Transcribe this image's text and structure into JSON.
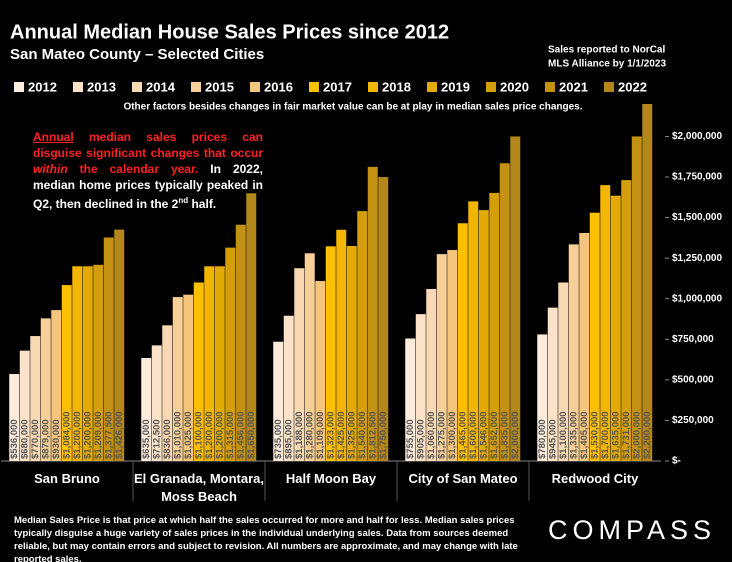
{
  "chart_data": {
    "type": "bar",
    "title": "Annual Median House Sales Prices since 2012",
    "subtitle": "San Mateo County – Selected Cities",
    "source": [
      "Sales reported to NorCal",
      "MLS Alliance by 1/1/2023"
    ],
    "note": "Other factors besides changes in fair market value can be at play in median sales price changes.",
    "annotation": {
      "red": [
        "Annual",
        " median sales prices can disguise significant changes that occur ",
        "within",
        " the calendar year."
      ],
      "white": [
        " In 2022, median home prices typically peaked in Q2, then declined in the 2",
        "nd",
        " half."
      ]
    },
    "footer": "Median Sales Price is that price at which half the sales occurred for more and half for less. Median sales prices typically disguise a huge variety of sales prices in the individual underlying sales. Data from sources deemed reliable, but may contain errors and subject to revision.  All numbers are approximate, and may change with late reported sales.",
    "logo": "COMPASS",
    "categories": [
      "San Bruno",
      "El Granada, Montara, Moss Beach",
      "Half Moon Bay",
      "City of San Mateo",
      "Redwood City"
    ],
    "series": [
      {
        "name": "2012",
        "color": "#fdebdc",
        "values": [
          536000,
          635000,
          735000,
          755000,
          780000
        ],
        "value_labels": [
          "$536,000",
          "$635,000",
          "$735,000",
          "$755,000",
          "$780,000"
        ]
      },
      {
        "name": "2013",
        "color": "#fbe2c8",
        "values": [
          680000,
          712500,
          895000,
          905000,
          945000
        ],
        "value_labels": [
          "$680,000",
          "$712,500",
          "$895,000",
          "$905,000",
          "$945,000"
        ]
      },
      {
        "name": "2014",
        "color": "#f9d9b2",
        "values": [
          770000,
          836000,
          1188000,
          1060000,
          1100000
        ],
        "value_labels": [
          "$770,000",
          "$836,000",
          "$1,188,000",
          "$1,060,000",
          "$1,100,000"
        ]
      },
      {
        "name": "2015",
        "color": "#f7cf98",
        "values": [
          879000,
          1010000,
          1280000,
          1275000,
          1335000
        ],
        "value_labels": [
          "$879,000",
          "$1,010,000",
          "$1,280,000",
          "$1,275,000",
          "$1,335,000"
        ]
      },
      {
        "name": "2016",
        "color": "#f6c57c",
        "values": [
          930000,
          1025000,
          1109000,
          1300000,
          1405000
        ],
        "value_labels": [
          "$930,000",
          "$1,025,000",
          "$1,109,000",
          "$1,300,000",
          "$1,405,000"
        ]
      },
      {
        "name": "2017",
        "color": "#ffc000",
        "values": [
          1084000,
          1100000,
          1323000,
          1465000,
          1530000
        ],
        "value_labels": [
          "$1,084,000",
          "$1,100,000",
          "$1,323,000",
          "$1,465,000",
          "$1,530,000"
        ]
      },
      {
        "name": "2018",
        "color": "#f2b600",
        "values": [
          1200000,
          1200000,
          1425000,
          1600000,
          1700000
        ],
        "value_labels": [
          "$1,200,000",
          "$1,200,000",
          "$1,425,000",
          "$1,600,000",
          "$1,700,000"
        ]
      },
      {
        "name": "2019",
        "color": "#e3aa04",
        "values": [
          1200000,
          1200000,
          1325000,
          1546000,
          1635000
        ],
        "value_labels": [
          "$1,200,000",
          "$1,200,000",
          "$1,325,000",
          "$1,546,000",
          "$1,635,000"
        ]
      },
      {
        "name": "2020",
        "color": "#d49e0a",
        "values": [
          1209000,
          1315000,
          1540000,
          1652000,
          1731000
        ],
        "value_labels": [
          "$1,209,000",
          "$1,315,000",
          "$1,540,000",
          "$1,652,000",
          "$1,731,000"
        ]
      },
      {
        "name": "2021",
        "color": "#c49212",
        "values": [
          1377500,
          1456000,
          1812500,
          1835000,
          2000000
        ],
        "value_labels": [
          "$1,377,500",
          "$1,456,000",
          "$1,812,500",
          "$1,835,000",
          "$2,000,000"
        ]
      },
      {
        "name": "2022",
        "color": "#b3871a",
        "values": [
          1426000,
          1650000,
          1750000,
          2000000,
          2200000
        ],
        "value_labels": [
          "$1,426,000",
          "$1,650,000",
          "$1,750,000",
          "$2,000,000",
          "$2,200,000"
        ]
      }
    ],
    "ylim": [
      0,
      2200000
    ],
    "yticks": [
      {
        "value": 0,
        "label": "$-"
      },
      {
        "value": 250000,
        "label": "$250,000"
      },
      {
        "value": 500000,
        "label": "$500,000"
      },
      {
        "value": 750000,
        "label": "$750,000"
      },
      {
        "value": 1000000,
        "label": "$1,000,000"
      },
      {
        "value": 1250000,
        "label": "$1,250,000"
      },
      {
        "value": 1500000,
        "label": "$1,500,000"
      },
      {
        "value": 1750000,
        "label": "$1,750,000"
      },
      {
        "value": 2000000,
        "label": "$2,000,000"
      }
    ]
  }
}
